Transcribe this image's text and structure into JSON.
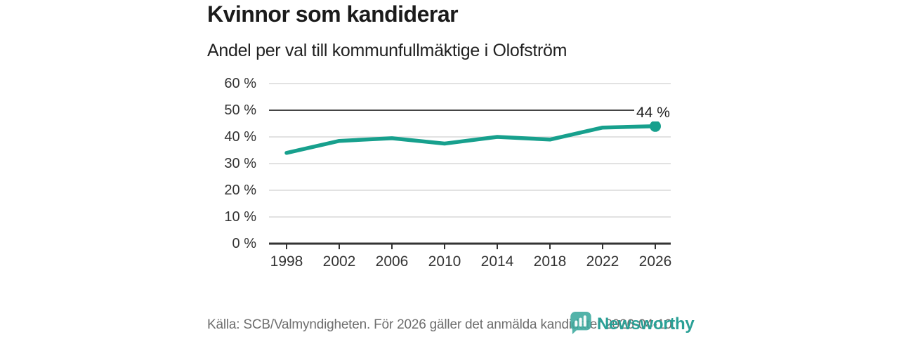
{
  "chart_data": {
    "type": "line",
    "title": "Kvinnor som kandiderar",
    "subtitle": "Andel per val till kommunfullmäktige i Olofström",
    "categories": [
      "1998",
      "2002",
      "2006",
      "2010",
      "2014",
      "2018",
      "2022",
      "2026"
    ],
    "values": [
      34,
      38.5,
      39.5,
      37.5,
      40,
      39,
      43.5,
      44
    ],
    "xlabel": "",
    "ylabel": "",
    "ylim": [
      0,
      60
    ],
    "yticks": [
      0,
      10,
      20,
      30,
      40,
      50,
      60
    ],
    "ytick_labels_top_down": [
      "60 %",
      "50 %",
      "40 %",
      "30 %",
      "20 %",
      "10 %",
      "0 %"
    ],
    "reference_line_y": 50,
    "end_point_label": "44 %",
    "grid": "horizontal",
    "legend": false,
    "line_color": "#17a08d"
  },
  "footer": {
    "source": "Källa: SCB/Valmyndigheten. För 2026 gäller det anmälda kandidater 2026-04-10.",
    "brand": "Newsworthy",
    "brand_color": "#2aa096",
    "brand_icon_color": "#3aa89d"
  }
}
